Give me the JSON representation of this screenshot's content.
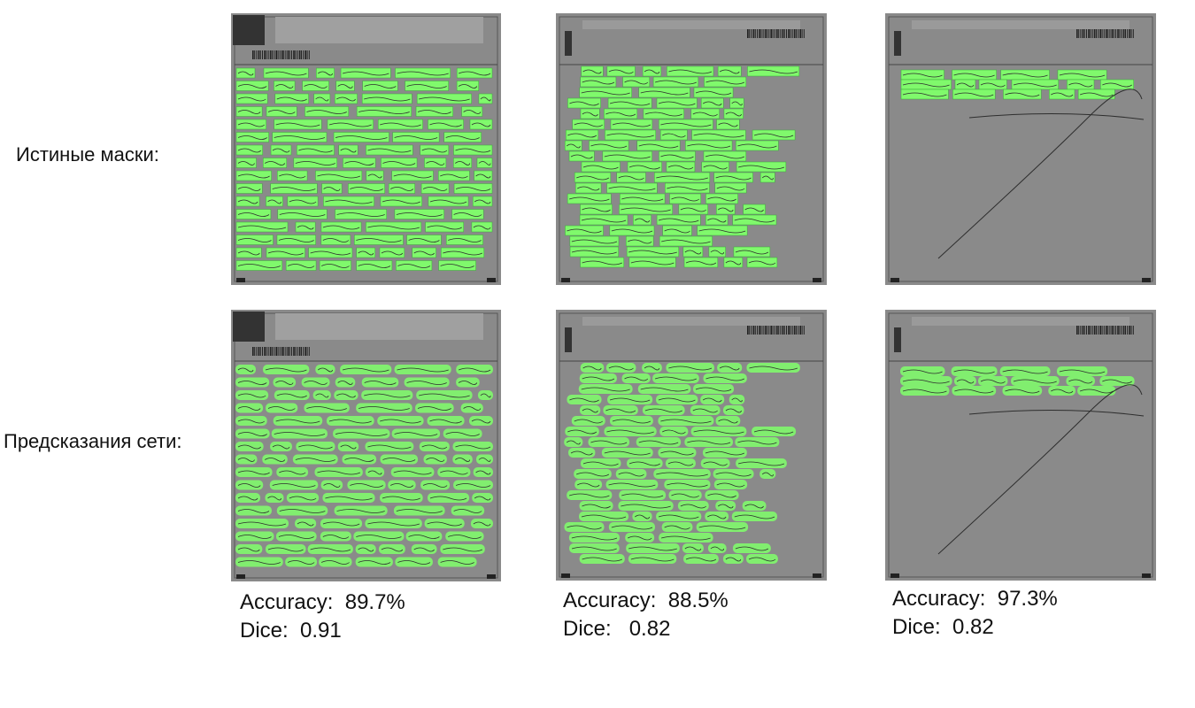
{
  "row_labels": {
    "ground_truth": "Истиные маски:",
    "predictions": "Предсказания сети:"
  },
  "colors": {
    "mask": "#7fff6a",
    "sheet": "#8a8a8a",
    "ink": "#2e2e2e"
  },
  "metrics": [
    {
      "accuracy_label": "Accuracy:",
      "accuracy_value": "89.7%",
      "dice_label": "Dice:",
      "dice_value": "0.91"
    },
    {
      "accuracy_label": "Accuracy:",
      "accuracy_value": "88.5%",
      "dice_label": "Dice:",
      "dice_value": "0.82"
    },
    {
      "accuracy_label": "Accuracy:",
      "accuracy_value": "97.3%",
      "dice_label": "Dice:",
      "dice_value": "0.82"
    }
  ]
}
